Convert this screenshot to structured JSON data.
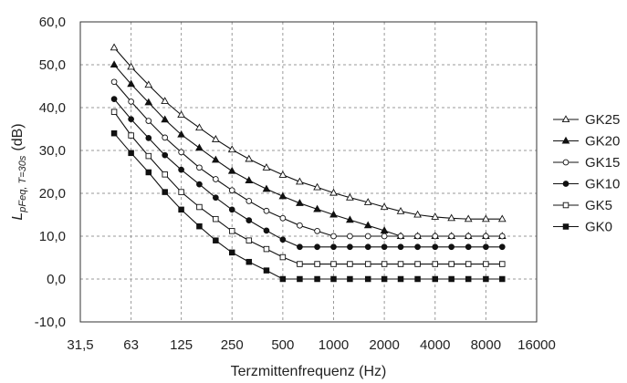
{
  "chart_data": {
    "type": "line",
    "title": "",
    "xlabel": "Terzmittenfrequenz (Hz)",
    "ylabel": {
      "main": "L",
      "subscript": "pFeq, T=30s",
      "unit": "(dB)"
    },
    "x_ticks": [
      "31,5",
      "63",
      "125",
      "250",
      "500",
      "1000",
      "2000",
      "4000",
      "8000",
      "16000"
    ],
    "x_tick_values": [
      31.5,
      63,
      125,
      250,
      500,
      1000,
      2000,
      4000,
      8000,
      16000
    ],
    "x_scale": "log2",
    "y_ticks": [
      "-10,0",
      "0,0",
      "10,0",
      "20,0",
      "30,0",
      "40,0",
      "50,0",
      "60,0"
    ],
    "y_tick_values": [
      -10,
      0,
      10,
      20,
      30,
      40,
      50,
      60
    ],
    "ylim": [
      -10,
      60
    ],
    "grid": "dashed",
    "legend_position": "right",
    "x": [
      50,
      63,
      80,
      100,
      125,
      160,
      200,
      250,
      315,
      400,
      500,
      630,
      800,
      1000,
      1250,
      1600,
      2000,
      2500,
      3150,
      4000,
      5000,
      6300,
      8000,
      10000
    ],
    "series": [
      {
        "name": "GK25",
        "marker": "triangle-open",
        "values": [
          54,
          49.5,
          45.3,
          41.5,
          38.3,
          35.3,
          32.6,
          30.2,
          28,
          26,
          24.3,
          22.7,
          21.4,
          20.1,
          19,
          17.9,
          16.8,
          15.8,
          15,
          14.5,
          14.2,
          14,
          14,
          14
        ]
      },
      {
        "name": "GK20",
        "marker": "triangle-filled",
        "values": [
          50,
          45.5,
          41.2,
          37.2,
          33.7,
          30.6,
          27.8,
          25.2,
          23,
          21,
          19.3,
          17.7,
          16.3,
          15,
          13.8,
          12.5,
          11.3,
          10,
          10,
          10,
          10,
          10,
          10,
          10
        ]
      },
      {
        "name": "GK15",
        "marker": "circle-open",
        "values": [
          46,
          41.4,
          36.9,
          33,
          29.6,
          26,
          23.3,
          20.7,
          18.2,
          15.9,
          14.2,
          12.5,
          11.2,
          10,
          10,
          10,
          10,
          10,
          10,
          10,
          10,
          10,
          10,
          10
        ]
      },
      {
        "name": "GK10",
        "marker": "circle-filled",
        "values": [
          42,
          37.3,
          32.9,
          28.9,
          25.5,
          22.1,
          19,
          16.2,
          13.7,
          11.3,
          9.2,
          7.5,
          7.5,
          7.5,
          7.5,
          7.5,
          7.5,
          7.5,
          7.5,
          7.5,
          7.5,
          7.5,
          7.5,
          7.5
        ]
      },
      {
        "name": "GK5",
        "marker": "square-open",
        "values": [
          39,
          33.5,
          28.7,
          24.4,
          20.3,
          16.8,
          14,
          11.2,
          9,
          7,
          5.1,
          3.5,
          3.5,
          3.5,
          3.5,
          3.5,
          3.5,
          3.5,
          3.5,
          3.5,
          3.5,
          3.5,
          3.5,
          3.5
        ]
      },
      {
        "name": "GK0",
        "marker": "square-filled",
        "values": [
          34,
          29.4,
          24.9,
          20.3,
          16.2,
          12.3,
          9,
          6.2,
          4,
          2,
          0,
          0,
          0,
          0,
          0,
          0,
          0,
          0,
          0,
          0,
          0,
          0,
          0,
          0
        ]
      }
    ]
  }
}
